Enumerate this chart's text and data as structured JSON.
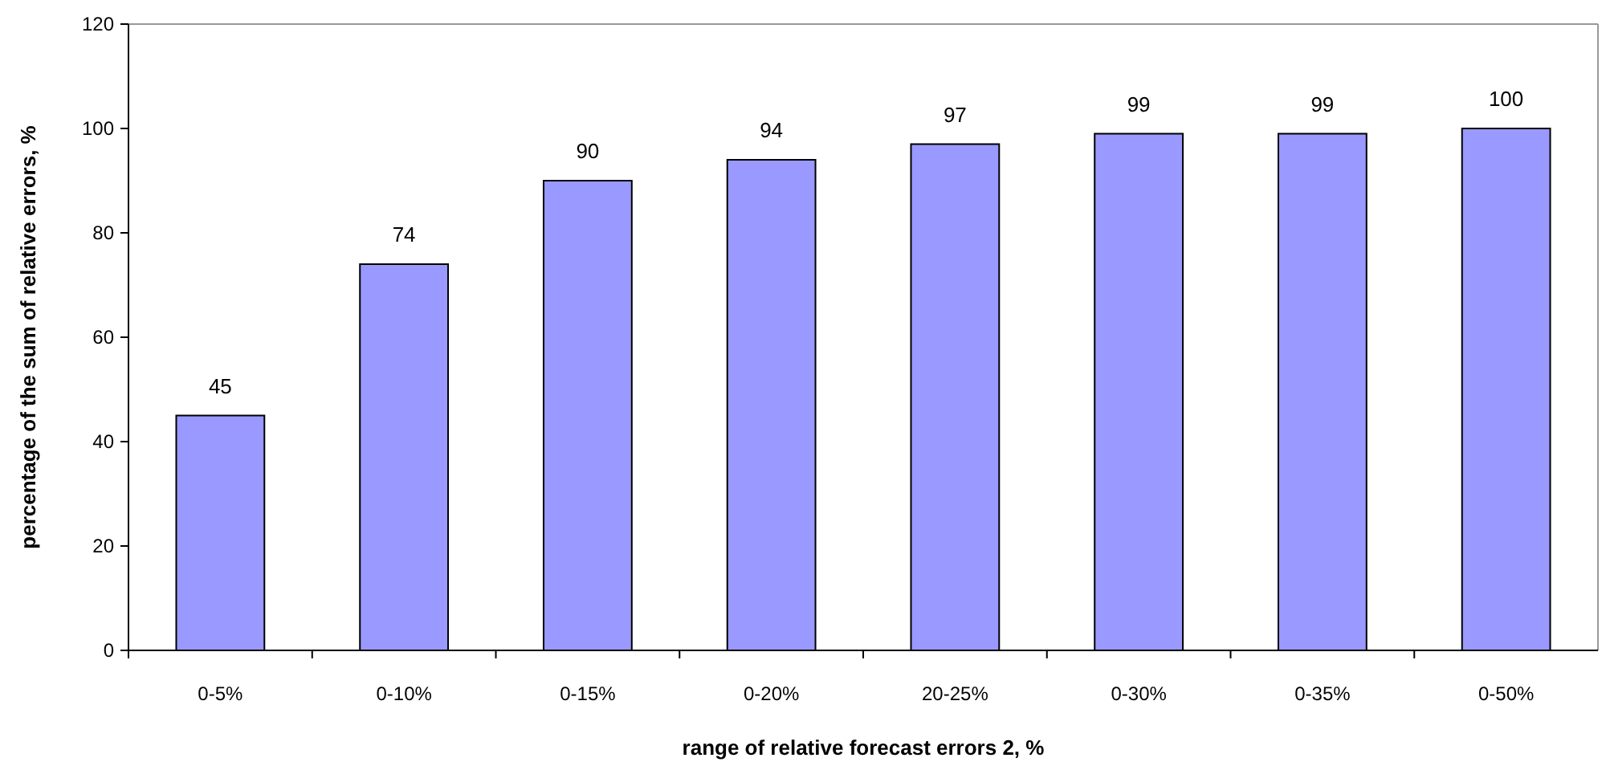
{
  "chart_data": {
    "type": "bar",
    "xlabel": "range of relative forecast errors 2, %",
    "ylabel": "percentage of the sum of relative errors, %",
    "categories": [
      "0-5%",
      "0-10%",
      "0-15%",
      "0-20%",
      "20-25%",
      "0-30%",
      "0-35%",
      "0-50%"
    ],
    "values": [
      45,
      74,
      90,
      94,
      97,
      99,
      99,
      100
    ],
    "color": "#9999ff",
    "ylim": [
      0,
      120
    ],
    "yticks": [
      0,
      20,
      40,
      60,
      80,
      100,
      120
    ],
    "data_labels": true,
    "grid": false
  }
}
